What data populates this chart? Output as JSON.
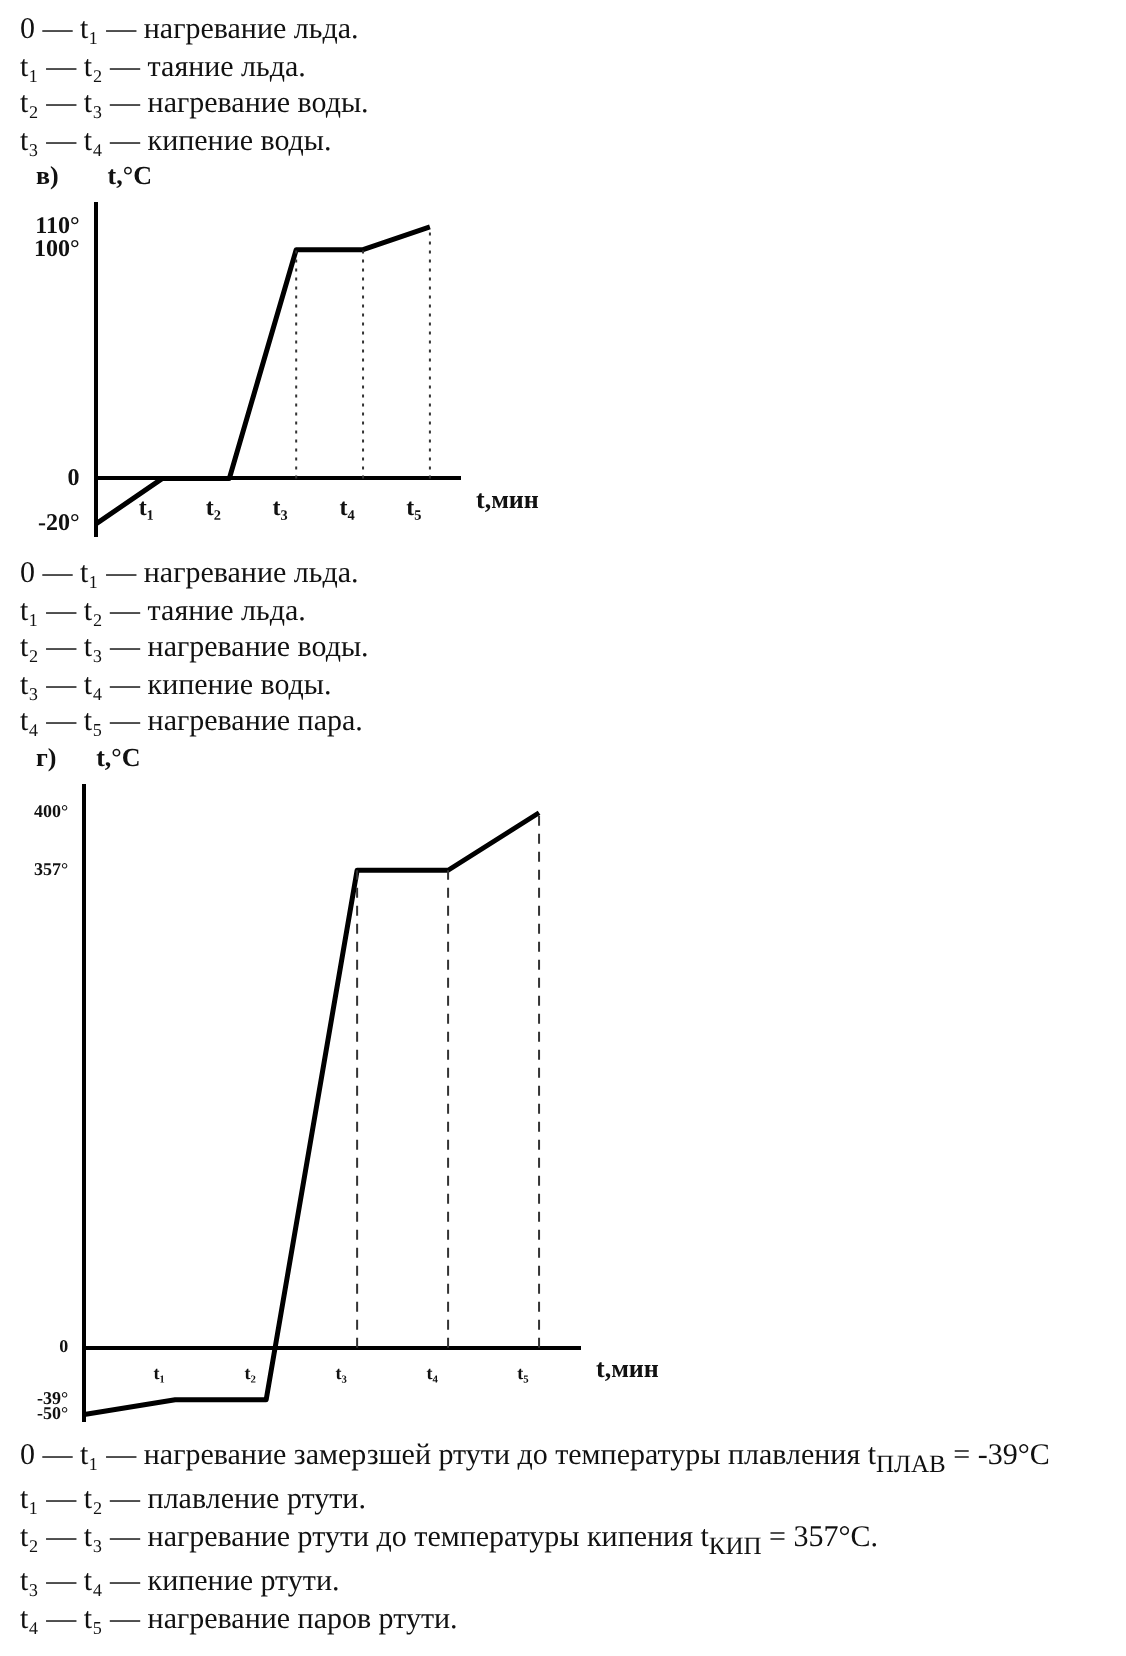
{
  "chart_data": [
    {
      "type": "other",
      "annotations": [
        "0 — t₁ — нагревание льда.",
        "t₁ — t₂ — таяние льда.",
        "t₂ — t₃ — нагревание воды.",
        "t₃ — t₄ — кипение воды."
      ]
    },
    {
      "type": "line",
      "title": "в)",
      "xlabel": "t,мин",
      "ylabel": "t,°C",
      "categories": [
        null,
        "t₁",
        "t₂",
        "t₃",
        "t₄",
        "t₅"
      ],
      "series": [
        {
          "color": "#000000",
          "values": [
            -20,
            0,
            0,
            100,
            100,
            110
          ]
        }
      ],
      "ylim": [
        -25,
        120
      ],
      "yticks": [
        {
          "value": -20,
          "label": "-20°"
        },
        0,
        {
          "value": 100,
          "label": "100°"
        },
        {
          "value": 110,
          "label": "110°"
        }
      ],
      "ref_lines": [
        {
          "axis": "x",
          "value": "t₃",
          "line_style": "dotted"
        },
        {
          "axis": "x",
          "value": "t₄",
          "line_style": "dotted"
        },
        {
          "axis": "x",
          "value": "t₅",
          "line_style": "dotted"
        }
      ],
      "grid": false,
      "legend": false,
      "marker": "none",
      "line_style": "solid"
    },
    {
      "type": "other",
      "annotations": [
        "0 — t₁ — нагревание льда.",
        "t₁ — t₂ — таяние льда.",
        "t₂ — t₃ — нагревание воды.",
        "t₃ — t₄ — кипение воды.",
        "t₄ — t₅ — нагревание пара."
      ]
    },
    {
      "type": "line",
      "title": "г)",
      "xlabel": "t,мин",
      "ylabel": "t,°C",
      "categories": [
        null,
        "t₁",
        "t₂",
        "t₃",
        "t₄",
        "t₅"
      ],
      "series": [
        {
          "color": "#000000",
          "values": [
            -50,
            -39,
            -39,
            357,
            357,
            400
          ]
        }
      ],
      "ylim": [
        -55,
        420
      ],
      "yticks": [
        {
          "value": -50,
          "label": "-50°"
        },
        {
          "value": -39,
          "label": "-39°"
        },
        0,
        {
          "value": 357,
          "label": "357°"
        },
        {
          "value": 400,
          "label": "400°"
        }
      ],
      "ref_lines": [
        {
          "axis": "x",
          "value": "t₃",
          "line_style": "dashed"
        },
        {
          "axis": "x",
          "value": "t₄",
          "line_style": "dashed"
        },
        {
          "axis": "x",
          "value": "t₅",
          "line_style": "dashed"
        }
      ],
      "grid": false,
      "legend": false,
      "marker": "none",
      "line_style": "solid"
    },
    {
      "type": "other",
      "annotations": [
        "0 — t₁ — нагревание замерзшей ртути до температуры плавления t$_{ПЛАВ}$ = -39°C",
        "t₁ — t₂ — плавление ртути.",
        "t₂ — t₃ — нагревание ртути до температуры кипения t$_{КИП}$ = 357°C.",
        "t₃ — t₄ — кипение ртути.",
        "t₄ — t₅ — нагревание паров ртути."
      ]
    }
  ]
}
